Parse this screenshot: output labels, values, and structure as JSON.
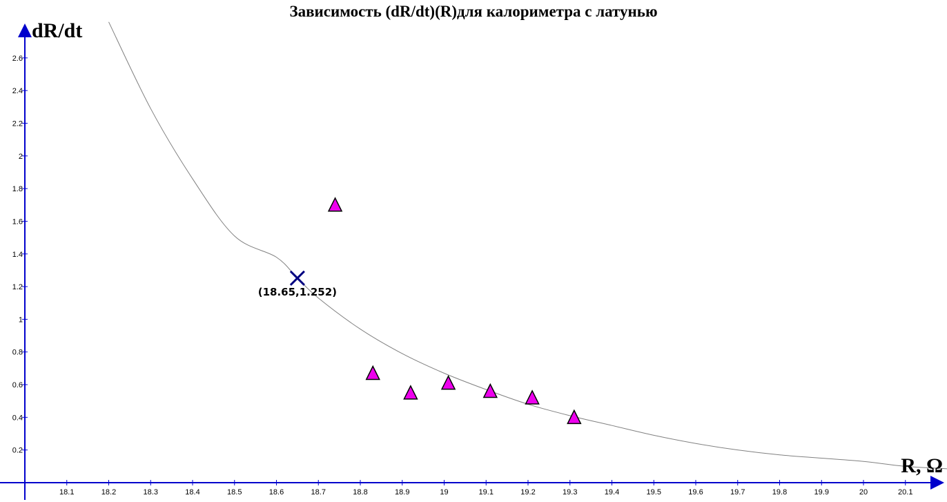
{
  "chart_data": {
    "type": "scatter",
    "title": "Зависимость (dR/dt)(R)для калориметра с латунью",
    "xlabel": "R, Ω",
    "ylabel": "dR/dt",
    "xlim": [
      17.95,
      20.2
    ],
    "ylim": [
      -0.1,
      2.85
    ],
    "x_ticks": [
      "18.1",
      "18.2",
      "18.3",
      "18.4",
      "18.5",
      "18.6",
      "18.7",
      "18.8",
      "18.9",
      "19",
      "19.1",
      "19.2",
      "19.3",
      "19.4",
      "19.5",
      "19.6",
      "19.7",
      "19.8",
      "19.9",
      "20",
      "20.1"
    ],
    "y_ticks": [
      "0.2",
      "0.4",
      "0.6",
      "0.8",
      "1",
      "1.2",
      "1.4",
      "1.6",
      "1.8",
      "2",
      "2.2",
      "2.4",
      "2.6"
    ],
    "grid": false,
    "series": [
      {
        "marker": "triangle",
        "color": "#ee00ee",
        "x": [
          18.74,
          18.83,
          18.92,
          19.01,
          19.11,
          19.21,
          19.31
        ],
        "y": [
          1.7,
          0.67,
          0.55,
          0.61,
          0.56,
          0.52,
          0.4
        ]
      }
    ],
    "fit_curve": {
      "color": "#808080",
      "x": [
        18.2,
        18.3,
        18.4,
        18.5,
        18.6,
        18.65,
        18.7,
        18.8,
        18.9,
        19.0,
        19.1,
        19.2,
        19.3,
        19.4,
        19.5,
        19.6,
        19.7,
        19.8,
        19.9,
        20.0,
        20.1,
        20.2
      ],
      "y": [
        2.82,
        2.29,
        1.86,
        1.51,
        1.38,
        1.252,
        1.13,
        0.94,
        0.79,
        0.67,
        0.57,
        0.48,
        0.41,
        0.35,
        0.29,
        0.24,
        0.2,
        0.17,
        0.15,
        0.13,
        0.1,
        0.085
      ]
    },
    "annotation": {
      "x": 18.65,
      "y": 1.252,
      "label": "(18.65,1.252)",
      "color": "#000080"
    }
  }
}
